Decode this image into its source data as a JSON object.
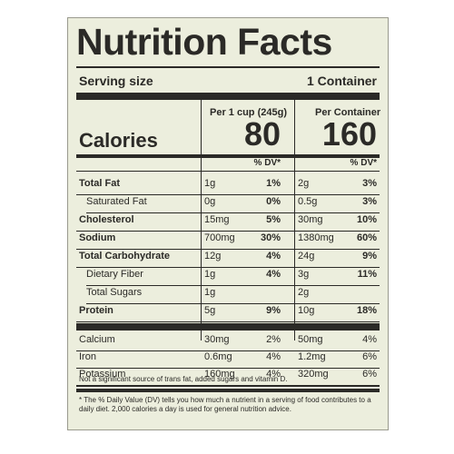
{
  "title": "Nutrition Facts",
  "serving": {
    "label": "Serving size",
    "value": "1 Container"
  },
  "columns": {
    "per_cup": "Per 1 cup (245g)",
    "per_container": "Per Container"
  },
  "calories": {
    "label": "Calories",
    "per_cup": "80",
    "per_container": "160"
  },
  "dv_header": "% DV*",
  "nutrients": [
    {
      "name": "Total Fat",
      "bold": true,
      "indent": false,
      "amt1": "1g",
      "dv1": "1%",
      "amt2": "2g",
      "dv2": "3%"
    },
    {
      "name": "Saturated Fat",
      "bold": false,
      "indent": true,
      "amt1": "0g",
      "dv1": "0%",
      "amt2": "0.5g",
      "dv2": "3%"
    },
    {
      "name": "Cholesterol",
      "bold": true,
      "indent": false,
      "amt1": "15mg",
      "dv1": "5%",
      "amt2": "30mg",
      "dv2": "10%"
    },
    {
      "name": "Sodium",
      "bold": true,
      "indent": false,
      "amt1": "700mg",
      "dv1": "30%",
      "amt2": "1380mg",
      "dv2": "60%"
    },
    {
      "name": "Total Carbohydrate",
      "bold": true,
      "indent": false,
      "amt1": "12g",
      "dv1": "4%",
      "amt2": "24g",
      "dv2": "9%"
    },
    {
      "name": "Dietary Fiber",
      "bold": false,
      "indent": true,
      "amt1": "1g",
      "dv1": "4%",
      "amt2": "3g",
      "dv2": "11%"
    },
    {
      "name": "Total Sugars",
      "bold": false,
      "indent": true,
      "amt1": "1g",
      "dv1": "",
      "amt2": "2g",
      "dv2": ""
    },
    {
      "name": "Protein",
      "bold": true,
      "indent": false,
      "amt1": "5g",
      "dv1": "9%",
      "amt2": "10g",
      "dv2": "18%"
    }
  ],
  "minerals": [
    {
      "name": "Calcium",
      "amt1": "30mg",
      "dv1": "2%",
      "amt2": "50mg",
      "dv2": "4%"
    },
    {
      "name": "Iron",
      "amt1": "0.6mg",
      "dv1": "4%",
      "amt2": "1.2mg",
      "dv2": "6%"
    },
    {
      "name": "Potassium",
      "amt1": "160mg",
      "dv1": "4%",
      "amt2": "320mg",
      "dv2": "6%"
    }
  ],
  "note": "Not a significant source of trans fat, added sugars and vitamin D.",
  "footnote": "* The % Daily Value (DV) tells you how much a nutrient in a serving of food contributes to a daily diet. 2,000 calories a day is used for general nutrition advice."
}
